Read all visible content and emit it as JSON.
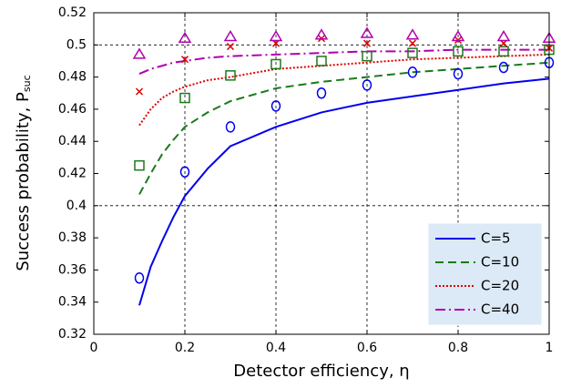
{
  "chart_data": {
    "type": "line",
    "xlabel": "Detector efficiency, η",
    "ylabel": "Success probability, P",
    "ylabel_sub": "suc",
    "x": [
      0.1,
      0.125,
      0.15,
      0.175,
      0.2,
      0.25,
      0.3,
      0.4,
      0.5,
      0.6,
      0.7,
      0.8,
      0.9,
      1.0
    ],
    "series": [
      {
        "name": "C=5",
        "color": "#0000ee",
        "style": "solid",
        "values": [
          0.338,
          0.362,
          0.378,
          0.393,
          0.406,
          0.423,
          0.437,
          0.449,
          0.458,
          0.464,
          0.468,
          0.472,
          0.476,
          0.479
        ]
      },
      {
        "name": "C=10",
        "color": "#1a7a1a",
        "style": "dashed",
        "values": [
          0.407,
          0.42,
          0.432,
          0.441,
          0.449,
          0.458,
          0.465,
          0.473,
          0.477,
          0.48,
          0.483,
          0.485,
          0.487,
          0.489
        ]
      },
      {
        "name": "C=20",
        "color": "#e00000",
        "style": "dotted",
        "values": [
          0.45,
          0.46,
          0.467,
          0.471,
          0.474,
          0.478,
          0.48,
          0.485,
          0.487,
          0.489,
          0.491,
          0.492,
          0.493,
          0.494
        ]
      },
      {
        "name": "C=40",
        "color": "#b000b0",
        "style": "dashdot",
        "values": [
          0.482,
          0.485,
          0.487,
          0.489,
          0.49,
          0.492,
          0.493,
          0.494,
          0.495,
          0.496,
          0.496,
          0.497,
          0.497,
          0.497
        ]
      }
    ],
    "marker_x": [
      0.1,
      0.2,
      0.3,
      0.4,
      0.5,
      0.6,
      0.7,
      0.8,
      0.9,
      1.0
    ],
    "markers": [
      {
        "color": "#0000ee",
        "shape": "circle",
        "values": [
          0.355,
          0.421,
          0.449,
          0.462,
          0.47,
          0.475,
          0.483,
          0.482,
          0.486,
          0.489
        ]
      },
      {
        "color": "#1a7a1a",
        "shape": "square",
        "values": [
          0.425,
          0.467,
          0.481,
          0.488,
          0.49,
          0.493,
          0.495,
          0.496,
          0.496,
          0.497
        ]
      },
      {
        "color": "#e00000",
        "shape": "cross",
        "values": [
          0.471,
          0.491,
          0.499,
          0.501,
          0.504,
          0.501,
          0.501,
          0.503,
          0.501,
          0.498
        ]
      },
      {
        "color": "#b000b0",
        "shape": "triangle",
        "values": [
          0.494,
          0.504,
          0.505,
          0.505,
          0.506,
          0.507,
          0.506,
          0.505,
          0.505,
          0.504
        ]
      }
    ],
    "xlim": [
      0,
      1
    ],
    "ylim": [
      0.32,
      0.52
    ],
    "xticks": [
      0,
      0.2,
      0.4,
      0.6,
      0.8,
      1
    ],
    "yticks": [
      0.32,
      0.34,
      0.36,
      0.38,
      0.4,
      0.42,
      0.44,
      0.46,
      0.48,
      0.5,
      0.52
    ],
    "xgrid": [
      0.2,
      0.4,
      0.6,
      0.8
    ],
    "ygrid": [
      0.4,
      0.5
    ],
    "legend": "lower right"
  }
}
